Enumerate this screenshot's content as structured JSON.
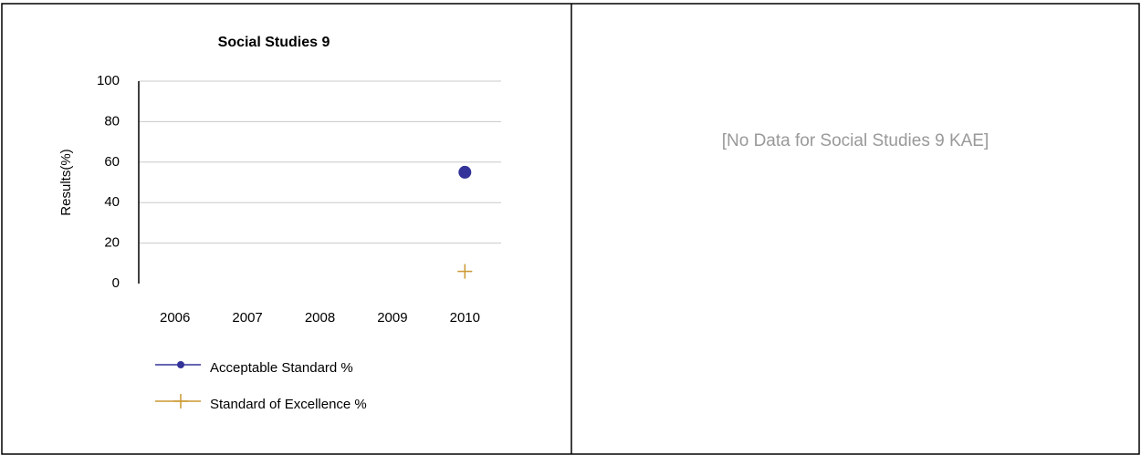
{
  "chart_data": {
    "type": "line",
    "title": "Social Studies 9",
    "y_label": "Results(%)",
    "categories": [
      "2006",
      "2007",
      "2008",
      "2009",
      "2010"
    ],
    "series": [
      {
        "name": "Acceptable Standard %",
        "color": "#333399",
        "marker": "circle",
        "values": [
          null,
          null,
          null,
          null,
          55
        ]
      },
      {
        "name": "Standard of Excellence %",
        "color": "#cc9933",
        "marker": "plus",
        "values": [
          null,
          null,
          null,
          null,
          6
        ]
      }
    ],
    "ylim": [
      0,
      100
    ],
    "yticks": [
      0,
      20,
      40,
      60,
      80,
      100
    ],
    "grid": true
  },
  "message": "[No Data for Social Studies 9 KAE]"
}
